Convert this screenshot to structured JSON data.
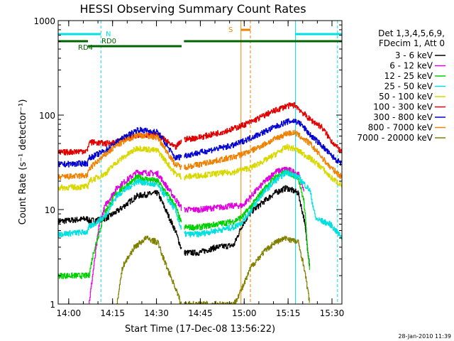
{
  "chart_data": {
    "type": "line",
    "title": "HESSI Observing Summary Count Rates",
    "xlabel": "Start Time (17-Dec-08 13:56:22)",
    "ylabel": "Count Rate (s⁻¹ detector⁻¹)",
    "yscale": "log",
    "ylim": [
      1,
      1000
    ],
    "xlim_minutes_after_start": [
      0,
      97
    ],
    "x_tick_labels": [
      "14:00",
      "14:15",
      "14:30",
      "14:45",
      "15:00",
      "15:15",
      "15:30"
    ],
    "x_tick_minutes": [
      3.6,
      18.6,
      33.6,
      48.6,
      63.6,
      78.6,
      93.6
    ],
    "y_tick_labels": [
      "1",
      "10",
      "100",
      "1000"
    ],
    "y_tick_values": [
      1,
      10,
      100,
      1000
    ],
    "legend_title_lines": [
      "Det 1,3,4,5,6,9,",
      "FDecim 1, Att 0"
    ],
    "legend_position": "right",
    "grid": false,
    "timestamp": "28-Jan-2010 11:39",
    "series": [
      {
        "name": "3 - 6 keV",
        "color": "#000000",
        "x": [
          0,
          10,
          10.5,
          16,
          20,
          27,
          34,
          40,
          42.5,
          48,
          54,
          60,
          63,
          66,
          70,
          74,
          78,
          82,
          84,
          86
        ],
        "y": [
          7.5,
          8.0,
          7.6,
          8.0,
          9.5,
          14,
          15,
          6.0,
          3.5,
          3.5,
          4.0,
          4.2,
          7.0,
          9.5,
          12,
          15,
          17,
          15,
          8,
          2.5
        ]
      },
      {
        "name": "6 - 12 keV",
        "color": "#e000e0",
        "x": [
          10.5,
          14,
          16,
          20,
          27,
          34,
          40,
          42.5,
          48,
          54,
          60,
          63,
          66,
          70,
          74,
          78,
          82,
          84
        ],
        "y": [
          1,
          7.0,
          11,
          17,
          25,
          24,
          13,
          10,
          10,
          10.5,
          11,
          11,
          14,
          19,
          25,
          27,
          24,
          16
        ]
      },
      {
        "name": "12 - 25 keV",
        "color": "#00d000",
        "x": [
          0,
          10.5,
          12,
          16,
          20,
          27,
          34,
          40,
          42.5,
          48,
          54,
          60,
          63,
          66,
          70,
          74,
          78,
          82,
          84,
          86
        ],
        "y": [
          2.0,
          2.0,
          3.5,
          9.5,
          15,
          22,
          20,
          11,
          6.5,
          6.5,
          7.0,
          7.5,
          8.5,
          11,
          16,
          22,
          25,
          22,
          12,
          2.0
        ]
      },
      {
        "name": "25 - 50 keV",
        "color": "#00e0e0",
        "x": [
          0,
          10,
          10.5,
          16,
          20,
          27,
          34,
          40,
          42.5,
          48,
          54,
          60,
          63,
          66,
          70,
          74,
          78,
          82,
          86,
          88,
          93,
          97
        ],
        "y": [
          5.5,
          5.8,
          6.5,
          8.5,
          14,
          20,
          18,
          10,
          5.5,
          5.5,
          6.0,
          6.5,
          7.5,
          10,
          15,
          20,
          25,
          22,
          16,
          8,
          7,
          5
        ]
      },
      {
        "name": "50 - 100 keV",
        "color": "#d8d800",
        "x": [
          0,
          10,
          10.5,
          16,
          20,
          27,
          34,
          40,
          42.5,
          48,
          54,
          60,
          66,
          72,
          78,
          81,
          86,
          90,
          93,
          97
        ],
        "y": [
          17,
          17.5,
          20,
          24,
          32,
          45,
          42,
          24,
          22,
          23,
          24,
          25,
          28,
          35,
          46,
          44,
          35,
          28,
          22,
          18
        ]
      },
      {
        "name": "100 - 300 keV",
        "color": "#e00000",
        "x": [
          0,
          10,
          10.5,
          16,
          20,
          27,
          34,
          40,
          42.5,
          48,
          54,
          60,
          66,
          72,
          78,
          81,
          83,
          86,
          90,
          93,
          97
        ],
        "y": [
          40,
          42,
          52,
          50,
          52,
          62,
          62,
          45,
          55,
          58,
          64,
          72,
          85,
          105,
          125,
          128,
          110,
          90,
          75,
          55,
          40
        ]
      },
      {
        "name": "300 - 800 keV",
        "color": "#0000d0",
        "x": [
          0,
          10,
          10.5,
          16,
          20,
          27,
          34,
          40,
          42.5,
          48,
          54,
          60,
          66,
          72,
          78,
          81,
          83,
          86,
          90,
          93,
          97
        ],
        "y": [
          30,
          31,
          35,
          42,
          52,
          70,
          66,
          35,
          37,
          40,
          44,
          48,
          58,
          70,
          85,
          87,
          80,
          62,
          48,
          38,
          30
        ]
      },
      {
        "name": "800 - 7000 keV",
        "color": "#f08000",
        "x": [
          0,
          10,
          10.5,
          16,
          20,
          27,
          34,
          40,
          42.5,
          48,
          54,
          60,
          66,
          72,
          78,
          81,
          86,
          90,
          93,
          97
        ],
        "y": [
          22,
          23,
          27,
          38,
          48,
          62,
          58,
          30,
          28,
          30,
          33,
          36,
          42,
          52,
          64,
          65,
          50,
          36,
          28,
          22
        ]
      },
      {
        "name": "7000 - 20000 keV",
        "color": "#808000",
        "x": [
          20,
          22,
          26,
          30,
          34,
          36,
          40,
          42,
          60,
          63,
          66,
          70,
          74,
          78,
          82,
          84,
          86
        ],
        "y": [
          1,
          2.5,
          4.0,
          5.0,
          4.5,
          3.0,
          1.5,
          1,
          1,
          1.5,
          2.5,
          3.5,
          4.5,
          5.0,
          4.5,
          2.5,
          1
        ]
      }
    ],
    "annotations": [
      {
        "label": "RD4",
        "color": "#006400"
      },
      {
        "label": "RD0",
        "color": "#006400"
      },
      {
        "label": "N",
        "color": "#00e0e0"
      },
      {
        "label": "S",
        "color": "#f08000"
      }
    ],
    "night_minutes": [
      [
        0,
        14.6
      ],
      [
        81.1,
        97
      ]
    ],
    "saa_minutes": [
      [
        62.5,
        65.7
      ]
    ],
    "vertical_markers": [
      {
        "minute": 14.6,
        "color": "#00e0e0",
        "style": "dashed"
      },
      {
        "minute": 81.1,
        "color": "#00e0e0",
        "style": "solid"
      },
      {
        "minute": 95.5,
        "color": "#00e0e0",
        "style": "dashed"
      },
      {
        "minute": 62.5,
        "color": "#f08000",
        "style": "solid"
      },
      {
        "minute": 65.7,
        "color": "#f08000",
        "style": "dashed"
      }
    ],
    "data_gap_minutes": [
      [
        42.2,
        43.0
      ]
    ]
  }
}
